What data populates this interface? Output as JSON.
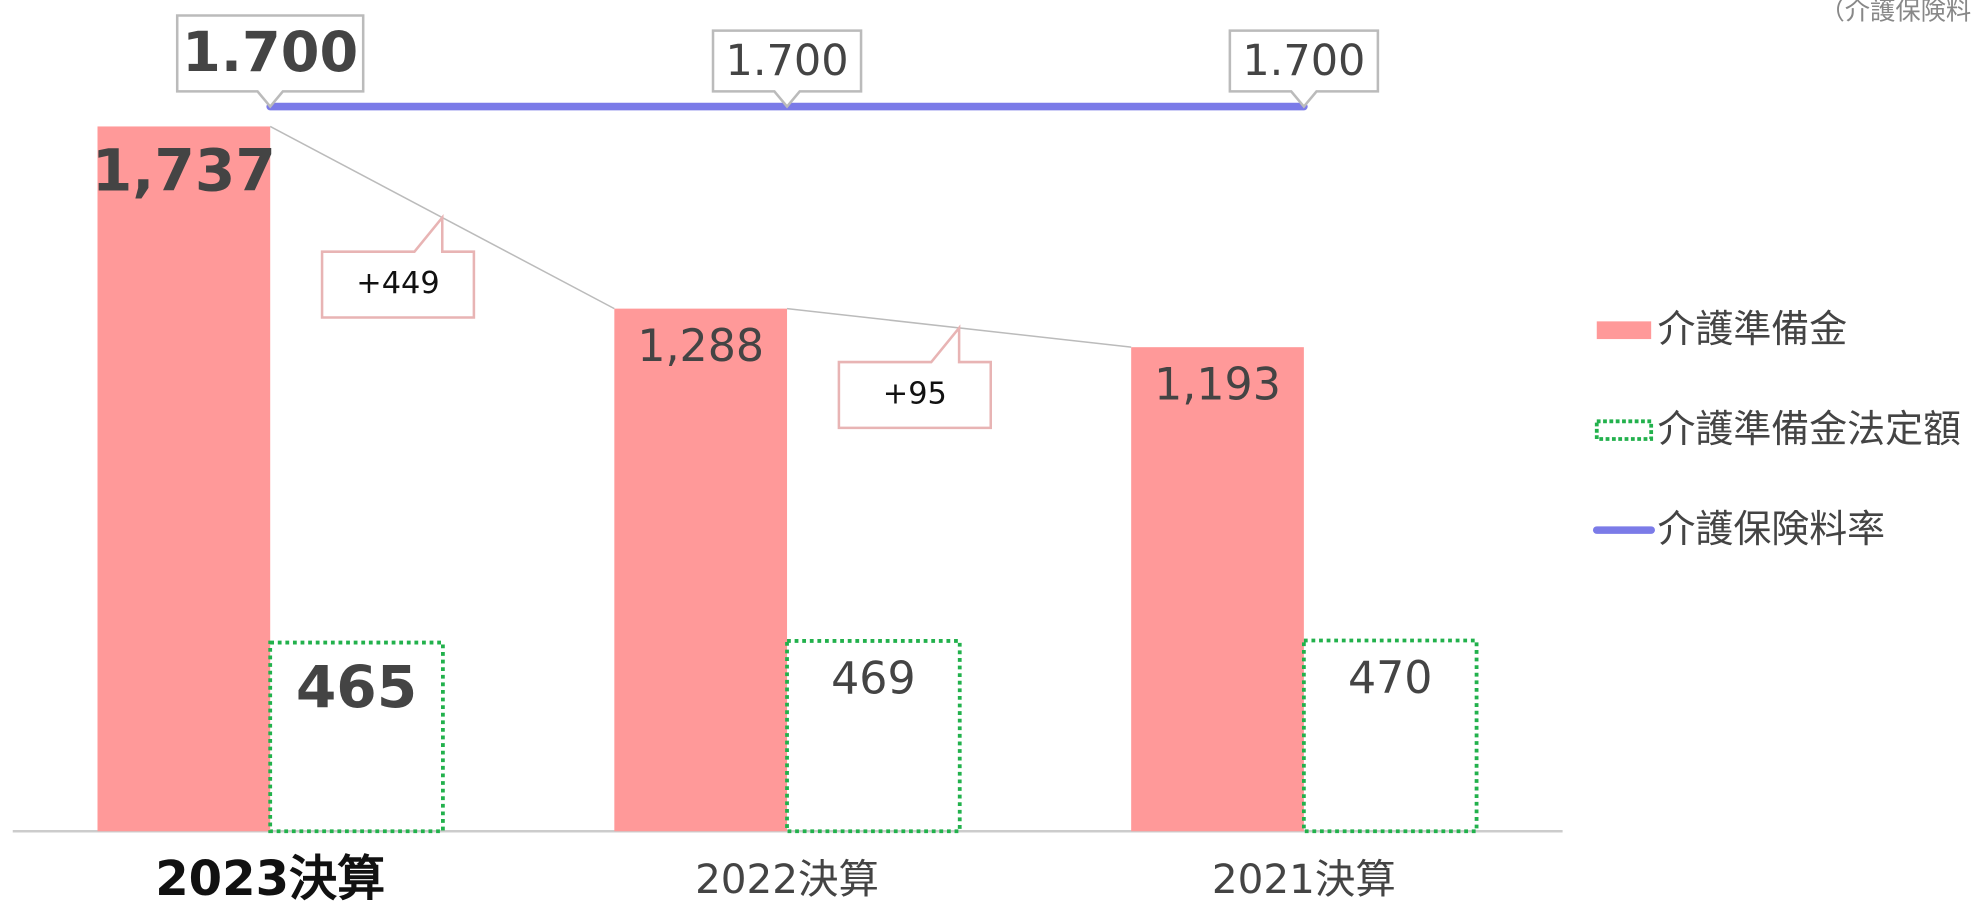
{
  "chart_data": {
    "type": "bar",
    "note": "（介護保険料",
    "categories": [
      "2023決算",
      "2022決算",
      "2021決算"
    ],
    "series": [
      {
        "name": "介護準備金",
        "color": "#ff9999",
        "values": [
          1737,
          1288,
          1193
        ],
        "value_labels": [
          "1,737",
          "1,288",
          "1,193"
        ]
      },
      {
        "name": "介護準備金法定額",
        "color": "#22b14c",
        "values": [
          465,
          469,
          470
        ]
      },
      {
        "name": "介護保険料率",
        "color": "#7b7be8",
        "axis": "y2",
        "values": [
          1.7,
          1.7,
          1.7
        ],
        "value_labels": [
          "1.700",
          "1.700",
          "1.700"
        ]
      }
    ],
    "annotations": [
      "+449",
      "+95"
    ],
    "ylim": [
      0,
      2000
    ],
    "y2lim": [
      0,
      1.95
    ],
    "legend": "right"
  }
}
